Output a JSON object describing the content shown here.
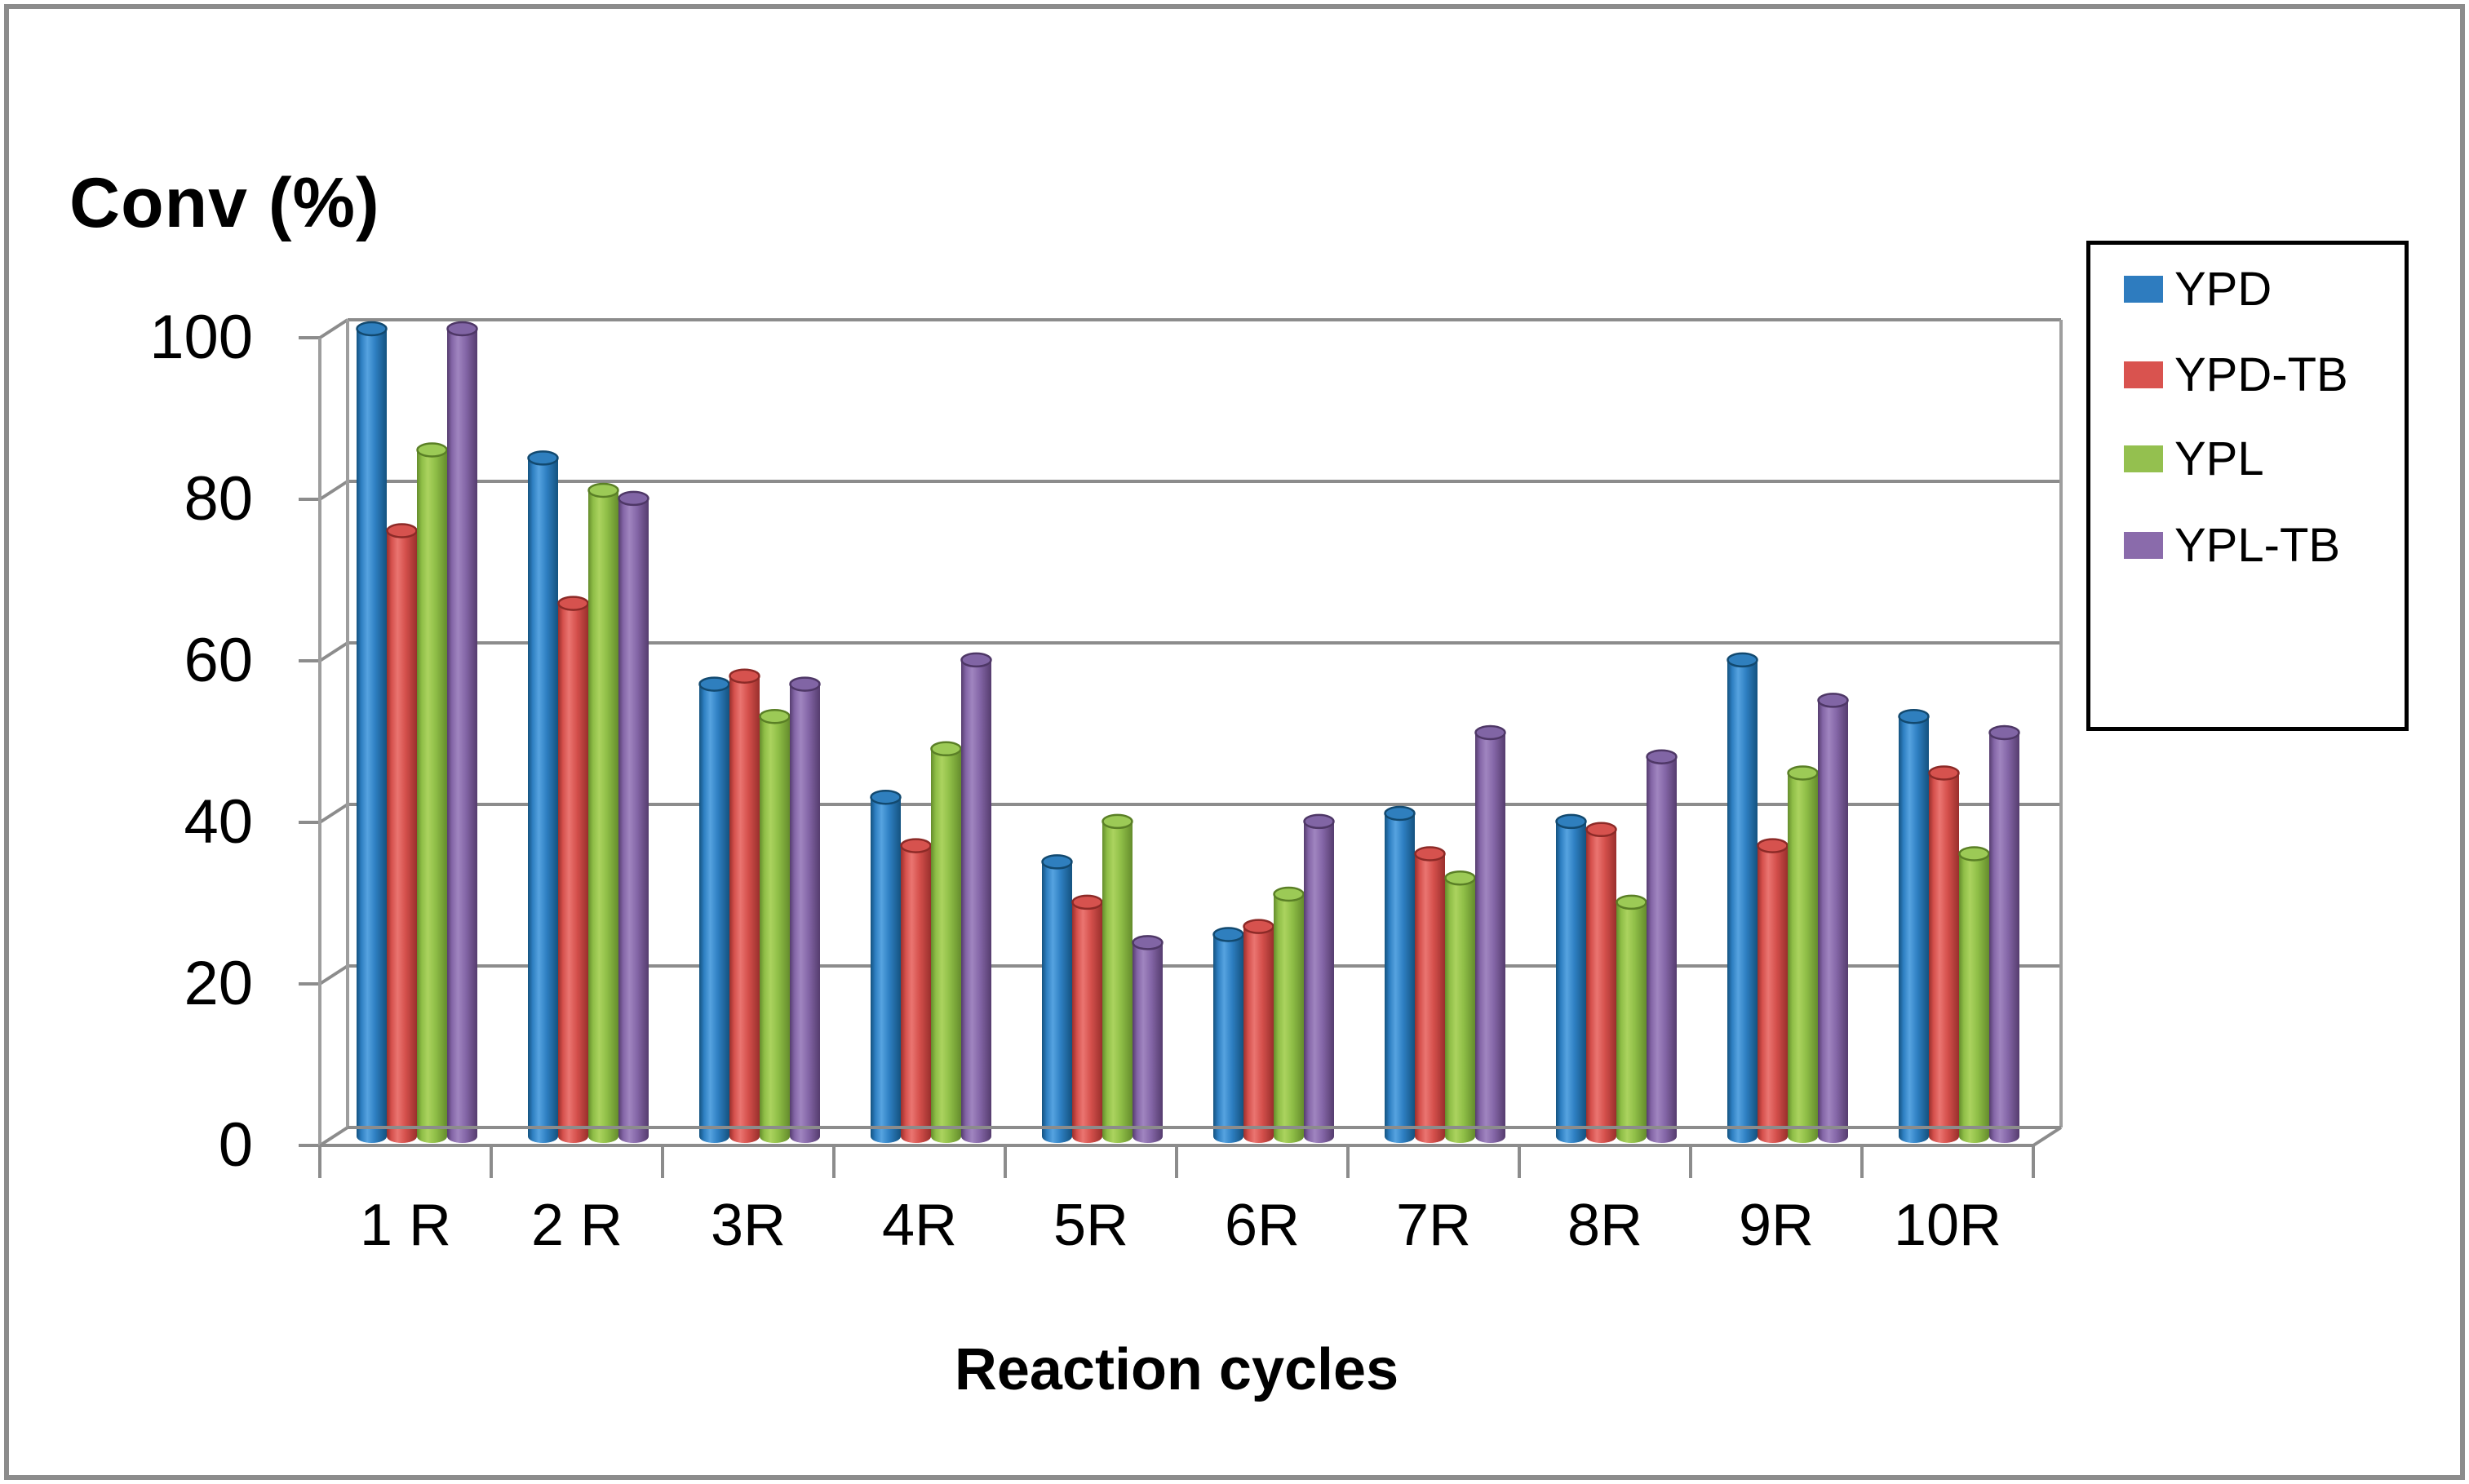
{
  "chart_data": {
    "type": "bar",
    "style": "3d-cylinder",
    "title": "Conv (%)",
    "xlabel": "Reaction cycles",
    "categories": [
      "1 R",
      "2 R",
      "3R",
      "4R",
      "5R",
      "6R",
      "7R",
      "8R",
      "9R",
      "10R"
    ],
    "series": [
      {
        "name": "YPD",
        "color": "#2E7CBF",
        "values": [
          100,
          84,
          56,
          42,
          34,
          25,
          40,
          39,
          59,
          52
        ]
      },
      {
        "name": "YPD-TB",
        "color": "#D9534F",
        "values": [
          75,
          66,
          57,
          36,
          29,
          26,
          35,
          38,
          36,
          45
        ]
      },
      {
        "name": "YPL",
        "color": "#94C04F",
        "values": [
          85,
          80,
          52,
          48,
          39,
          30,
          32,
          29,
          45,
          35
        ]
      },
      {
        "name": "YPL-TB",
        "color": "#8A6BAB",
        "values": [
          100,
          79,
          56,
          59,
          24,
          39,
          50,
          47,
          54,
          50
        ]
      }
    ],
    "ylim": [
      0,
      100
    ],
    "yticks": [
      0,
      20,
      40,
      60,
      80,
      100
    ],
    "grid": true,
    "legend_position": "right"
  },
  "colors": {
    "gridline": "#8C8C8C",
    "wall_line": "#9E9E9E",
    "frame_border": "#8C8C8C",
    "legend_border": "#000000",
    "background": "#FFFFFF",
    "text": "#000000"
  },
  "series_shading": {
    "YPD": {
      "dark": "#14527F",
      "mid": "#2E7FC2",
      "light": "#56A3E0",
      "cap": "#2F7FBE",
      "cap_rim": "#12496F"
    },
    "YPD-TB": {
      "dark": "#992F2C",
      "mid": "#D5504C",
      "light": "#EA7571",
      "cap": "#D6524E",
      "cap_rim": "#8C2A27"
    },
    "YPL": {
      "dark": "#648C2C",
      "mid": "#8FBE47",
      "light": "#ABD35F",
      "cap": "#9CCA56",
      "cap_rim": "#5A7F26"
    },
    "YPL-TB": {
      "dark": "#553C6E",
      "mid": "#8466A7",
      "light": "#A085C0",
      "cap": "#8165A5",
      "cap_rim": "#4E3766"
    }
  }
}
